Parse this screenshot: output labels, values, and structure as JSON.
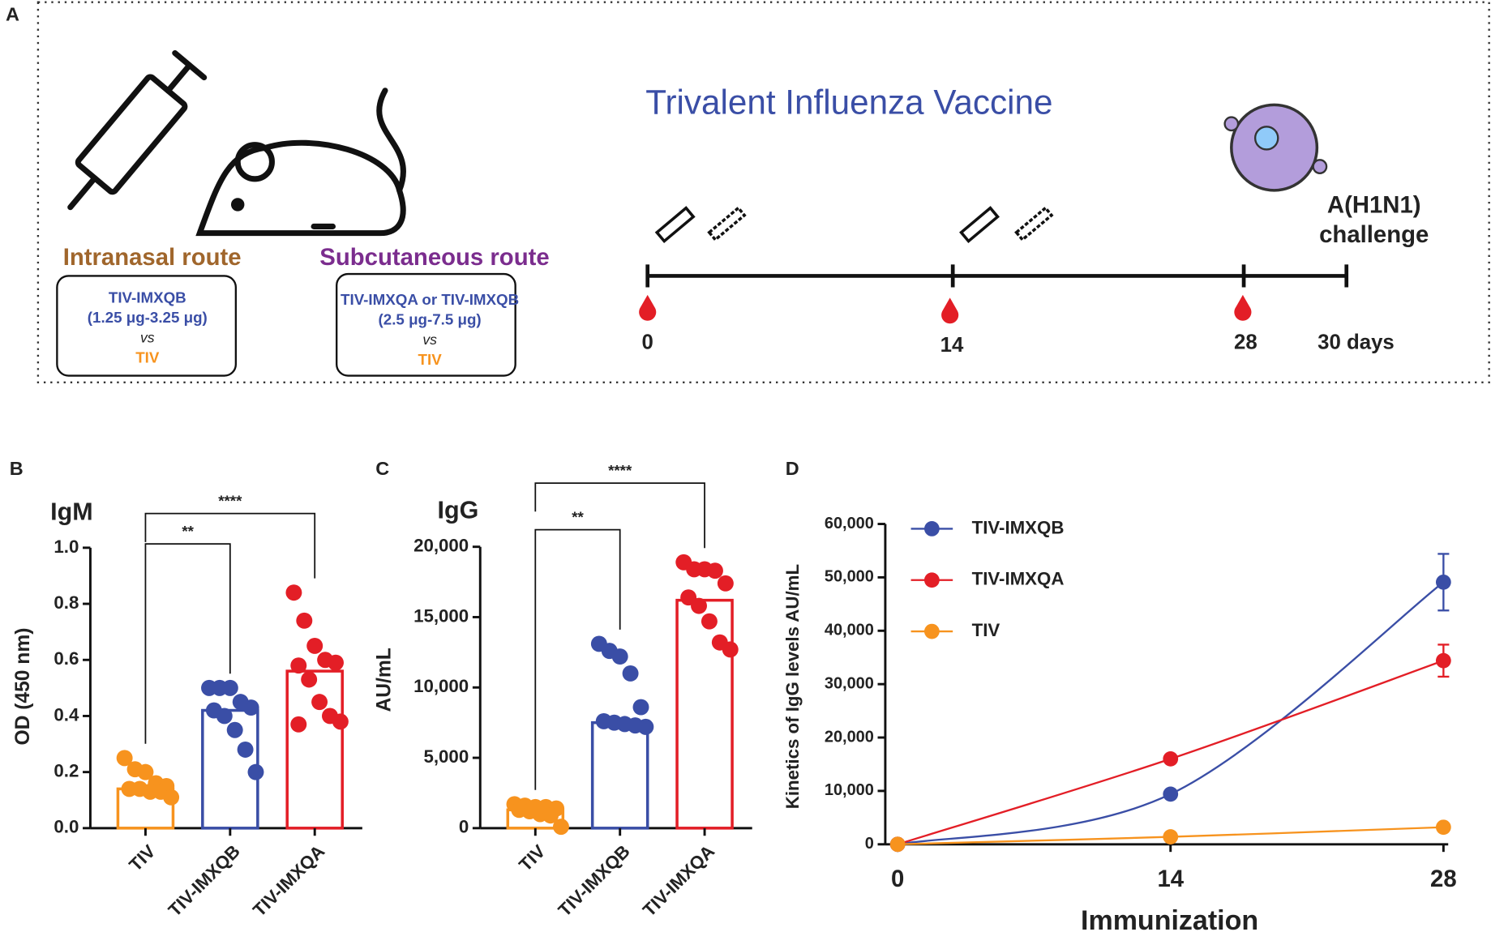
{
  "panel_a": {
    "label": "A",
    "title": "Trivalent Influenza Vaccine",
    "routes": [
      {
        "name": "Intranasal route",
        "lines": [
          "TIV-IMXQB",
          "(1.25 μg-3.25 μg)",
          "vs",
          "TIV"
        ]
      },
      {
        "name": "Subcutaneous route",
        "lines": [
          "TIV-IMXQA or TIV-IMXQB",
          "(2.5 μg-7.5 μg)",
          "vs",
          "TIV"
        ]
      }
    ],
    "timeline": [
      "0",
      "14",
      "28",
      "30 days"
    ],
    "challenge": [
      "A(H1N1)",
      "challenge"
    ]
  },
  "chart_data": [
    {
      "type": "bar",
      "label": "B",
      "title": "IgM",
      "y_label": "OD (450 nm)",
      "categories": [
        "TIV",
        "TIV-IMXQB",
        "TIV-IMXQA"
      ],
      "colors": [
        "#f7931e",
        "#3a4ea6",
        "#e31e26"
      ],
      "values": [
        0.14,
        0.42,
        0.56
      ],
      "points": [
        [
          0.25,
          0.21,
          0.2,
          0.16,
          0.15,
          0.14,
          0.14,
          0.13,
          0.13,
          0.11
        ],
        [
          0.5,
          0.5,
          0.5,
          0.45,
          0.43,
          0.42,
          0.4,
          0.35,
          0.28,
          0.2
        ],
        [
          0.84,
          0.74,
          0.65,
          0.6,
          0.59,
          0.58,
          0.53,
          0.45,
          0.4,
          0.38,
          0.37
        ]
      ],
      "ylim": [
        0,
        1.0
      ],
      "yticks": [
        {
          "value": 0,
          "label": "0.0"
        },
        0.2,
        0.4,
        0.6,
        0.8,
        {
          "value": 1,
          "label": "1.0"
        }
      ],
      "annotations": [
        "**",
        "****"
      ]
    },
    {
      "type": "bar",
      "label": "C",
      "title": "IgG",
      "y_label": "AU/mL",
      "categories": [
        "TIV",
        "TIV-IMXQB",
        "TIV-IMXQA"
      ],
      "colors": [
        "#f7931e",
        "#3a4ea6",
        "#e31e26"
      ],
      "values": [
        1300,
        7500,
        16200
      ],
      "points": [
        [
          1700,
          1600,
          1500,
          1500,
          1400,
          1300,
          1200,
          1000,
          900,
          100
        ],
        [
          13100,
          12600,
          12200,
          11000,
          8600,
          7600,
          7500,
          7400,
          7300,
          7200
        ],
        [
          18900,
          18400,
          18400,
          18300,
          17400,
          16400,
          15800,
          14700,
          13200,
          12700
        ]
      ],
      "ylim": [
        0,
        20000
      ],
      "yticks": [
        0,
        {
          "value": 5000,
          "label": "5,000"
        },
        {
          "value": 10000,
          "label": "10,000"
        },
        {
          "value": 15000,
          "label": "15,000"
        },
        {
          "value": 20000,
          "label": "20,000"
        }
      ],
      "annotations": [
        "**",
        "****"
      ]
    },
    {
      "type": "line",
      "label": "D",
      "x_label": "Immunization",
      "y_label": "Kinetics of IgG levels AU/mL",
      "x": [
        0,
        14,
        28
      ],
      "xlim": [
        0,
        28
      ],
      "xticks": [
        0,
        14,
        28
      ],
      "ylim": [
        0,
        60000
      ],
      "yticks": [
        0,
        {
          "value": 10000,
          "label": "10,000"
        },
        {
          "value": 20000,
          "label": "20,000"
        },
        {
          "value": 30000,
          "label": "30,000"
        },
        {
          "value": 40000,
          "label": "40,000"
        },
        {
          "value": 50000,
          "label": "50,000"
        },
        {
          "value": 60000,
          "label": "60,000"
        }
      ],
      "legend": "upper left",
      "series": [
        {
          "name": "TIV-IMXQB",
          "color": "#3a4ea6",
          "values": [
            0,
            9400,
            49100
          ],
          "errors": [
            null,
            null,
            5300
          ]
        },
        {
          "name": "TIV-IMXQA",
          "color": "#e31e26",
          "values": [
            0,
            16000,
            34400
          ],
          "errors": [
            null,
            null,
            3000
          ]
        },
        {
          "name": "TIV",
          "color": "#f7931e",
          "values": [
            0,
            1400,
            3200
          ],
          "errors": [
            null,
            null,
            null
          ]
        }
      ]
    }
  ]
}
